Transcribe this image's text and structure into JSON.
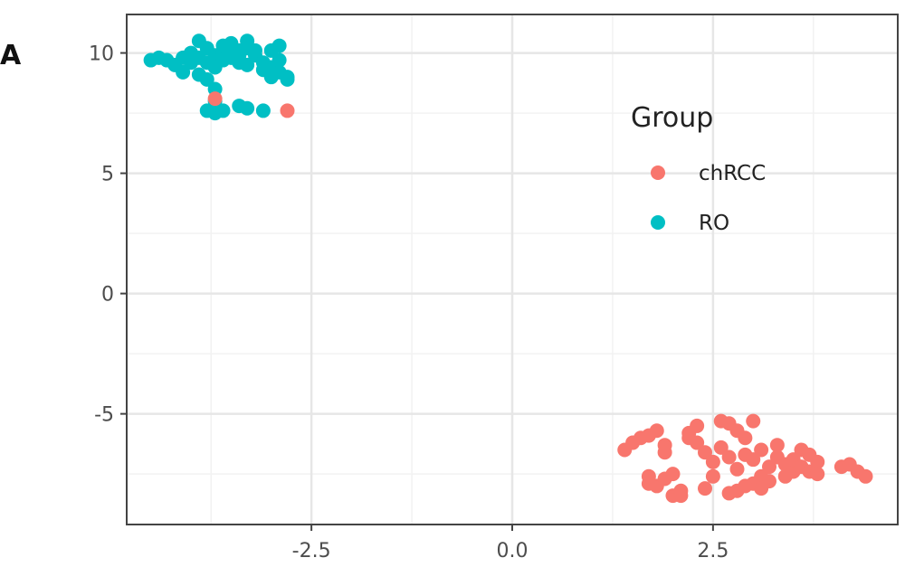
{
  "panel_label": "A",
  "chart_data": {
    "type": "scatter",
    "title": "",
    "xlabel": "",
    "ylabel": "",
    "xlim": [
      -4.8,
      4.8
    ],
    "ylim": [
      -9.6,
      11.6
    ],
    "x_ticks": [
      -2.5,
      0.0,
      2.5
    ],
    "x_tick_labels": [
      "-2.5",
      "0.0",
      "2.5"
    ],
    "y_ticks": [
      -5,
      0,
      5,
      10
    ],
    "y_tick_labels": [
      "-5",
      "0",
      "5",
      "10"
    ],
    "grid": true,
    "legend": {
      "title": "Group",
      "placement": "top-right inside",
      "entries": [
        "chRCC",
        "RO"
      ]
    },
    "colors": {
      "chRCC": "#F8766D",
      "RO": "#00BFC4",
      "panel_border": "#444444",
      "grid_major": "#e6e6e6",
      "grid_minor": "#f2f2f2",
      "tick_text": "#4d4d4d"
    },
    "series": [
      {
        "name": "RO",
        "points": [
          [
            -4.5,
            9.7
          ],
          [
            -4.4,
            9.8
          ],
          [
            -4.3,
            9.7
          ],
          [
            -4.2,
            9.5
          ],
          [
            -4.1,
            9.8
          ],
          [
            -4.1,
            9.2
          ],
          [
            -4.0,
            9.6
          ],
          [
            -4.0,
            10.0
          ],
          [
            -3.9,
            9.1
          ],
          [
            -3.9,
            9.8
          ],
          [
            -3.9,
            10.5
          ],
          [
            -3.8,
            10.2
          ],
          [
            -3.8,
            9.6
          ],
          [
            -3.8,
            8.9
          ],
          [
            -3.7,
            9.9
          ],
          [
            -3.7,
            9.4
          ],
          [
            -3.6,
            10.0
          ],
          [
            -3.6,
            9.7
          ],
          [
            -3.6,
            10.3
          ],
          [
            -3.5,
            9.8
          ],
          [
            -3.5,
            10.0
          ],
          [
            -3.5,
            10.4
          ],
          [
            -3.4,
            10.1
          ],
          [
            -3.4,
            9.6
          ],
          [
            -3.4,
            9.9
          ],
          [
            -3.3,
            10.5
          ],
          [
            -3.3,
            10.2
          ],
          [
            -3.3,
            9.5
          ],
          [
            -3.2,
            9.9
          ],
          [
            -3.2,
            10.1
          ],
          [
            -3.1,
            9.6
          ],
          [
            -3.1,
            9.3
          ],
          [
            -3.0,
            10.1
          ],
          [
            -3.0,
            9.4
          ],
          [
            -3.0,
            9.0
          ],
          [
            -2.9,
            9.2
          ],
          [
            -2.9,
            9.7
          ],
          [
            -2.9,
            10.3
          ],
          [
            -2.8,
            9.0
          ],
          [
            -2.8,
            8.9
          ],
          [
            -3.7,
            8.5
          ],
          [
            -3.7,
            8.0
          ],
          [
            -3.8,
            7.6
          ],
          [
            -3.7,
            7.5
          ],
          [
            -3.6,
            7.6
          ],
          [
            -3.4,
            7.8
          ],
          [
            -3.3,
            7.7
          ],
          [
            -3.1,
            7.6
          ]
        ]
      },
      {
        "name": "chRCC",
        "points": [
          [
            -2.8,
            7.6
          ],
          [
            -3.7,
            8.1
          ],
          [
            1.5,
            -6.2
          ],
          [
            1.6,
            -6.0
          ],
          [
            1.7,
            -5.9
          ],
          [
            1.8,
            -5.7
          ],
          [
            1.9,
            -6.3
          ],
          [
            1.9,
            -6.6
          ],
          [
            1.7,
            -7.6
          ],
          [
            1.7,
            -7.9
          ],
          [
            1.8,
            -8.0
          ],
          [
            1.9,
            -7.7
          ],
          [
            2.0,
            -8.4
          ],
          [
            2.1,
            -8.2
          ],
          [
            2.1,
            -8.4
          ],
          [
            2.2,
            -6.0
          ],
          [
            2.2,
            -5.8
          ],
          [
            2.3,
            -5.5
          ],
          [
            2.3,
            -6.2
          ],
          [
            2.4,
            -6.6
          ],
          [
            2.4,
            -8.1
          ],
          [
            2.5,
            -7.0
          ],
          [
            2.6,
            -6.4
          ],
          [
            2.6,
            -5.3
          ],
          [
            2.7,
            -5.4
          ],
          [
            2.7,
            -6.8
          ],
          [
            2.8,
            -7.3
          ],
          [
            2.8,
            -8.2
          ],
          [
            2.8,
            -5.7
          ],
          [
            2.9,
            -6.0
          ],
          [
            2.9,
            -6.7
          ],
          [
            3.0,
            -5.3
          ],
          [
            3.0,
            -6.9
          ],
          [
            3.0,
            -7.9
          ],
          [
            3.1,
            -7.6
          ],
          [
            3.1,
            -6.5
          ],
          [
            3.2,
            -7.8
          ],
          [
            3.2,
            -7.2
          ],
          [
            3.3,
            -6.8
          ],
          [
            3.3,
            -6.3
          ],
          [
            3.4,
            -7.6
          ],
          [
            3.4,
            -7.1
          ],
          [
            3.5,
            -7.4
          ],
          [
            3.5,
            -6.9
          ],
          [
            3.6,
            -7.2
          ],
          [
            3.6,
            -6.5
          ],
          [
            3.7,
            -7.4
          ],
          [
            3.7,
            -6.7
          ],
          [
            3.8,
            -7.0
          ],
          [
            3.8,
            -7.5
          ],
          [
            2.7,
            -8.3
          ],
          [
            2.9,
            -8.0
          ],
          [
            2.5,
            -7.6
          ],
          [
            4.1,
            -7.2
          ],
          [
            4.2,
            -7.1
          ],
          [
            4.3,
            -7.4
          ],
          [
            4.4,
            -7.6
          ],
          [
            1.4,
            -6.5
          ],
          [
            2.0,
            -7.5
          ],
          [
            3.1,
            -8.1
          ]
        ]
      }
    ]
  }
}
